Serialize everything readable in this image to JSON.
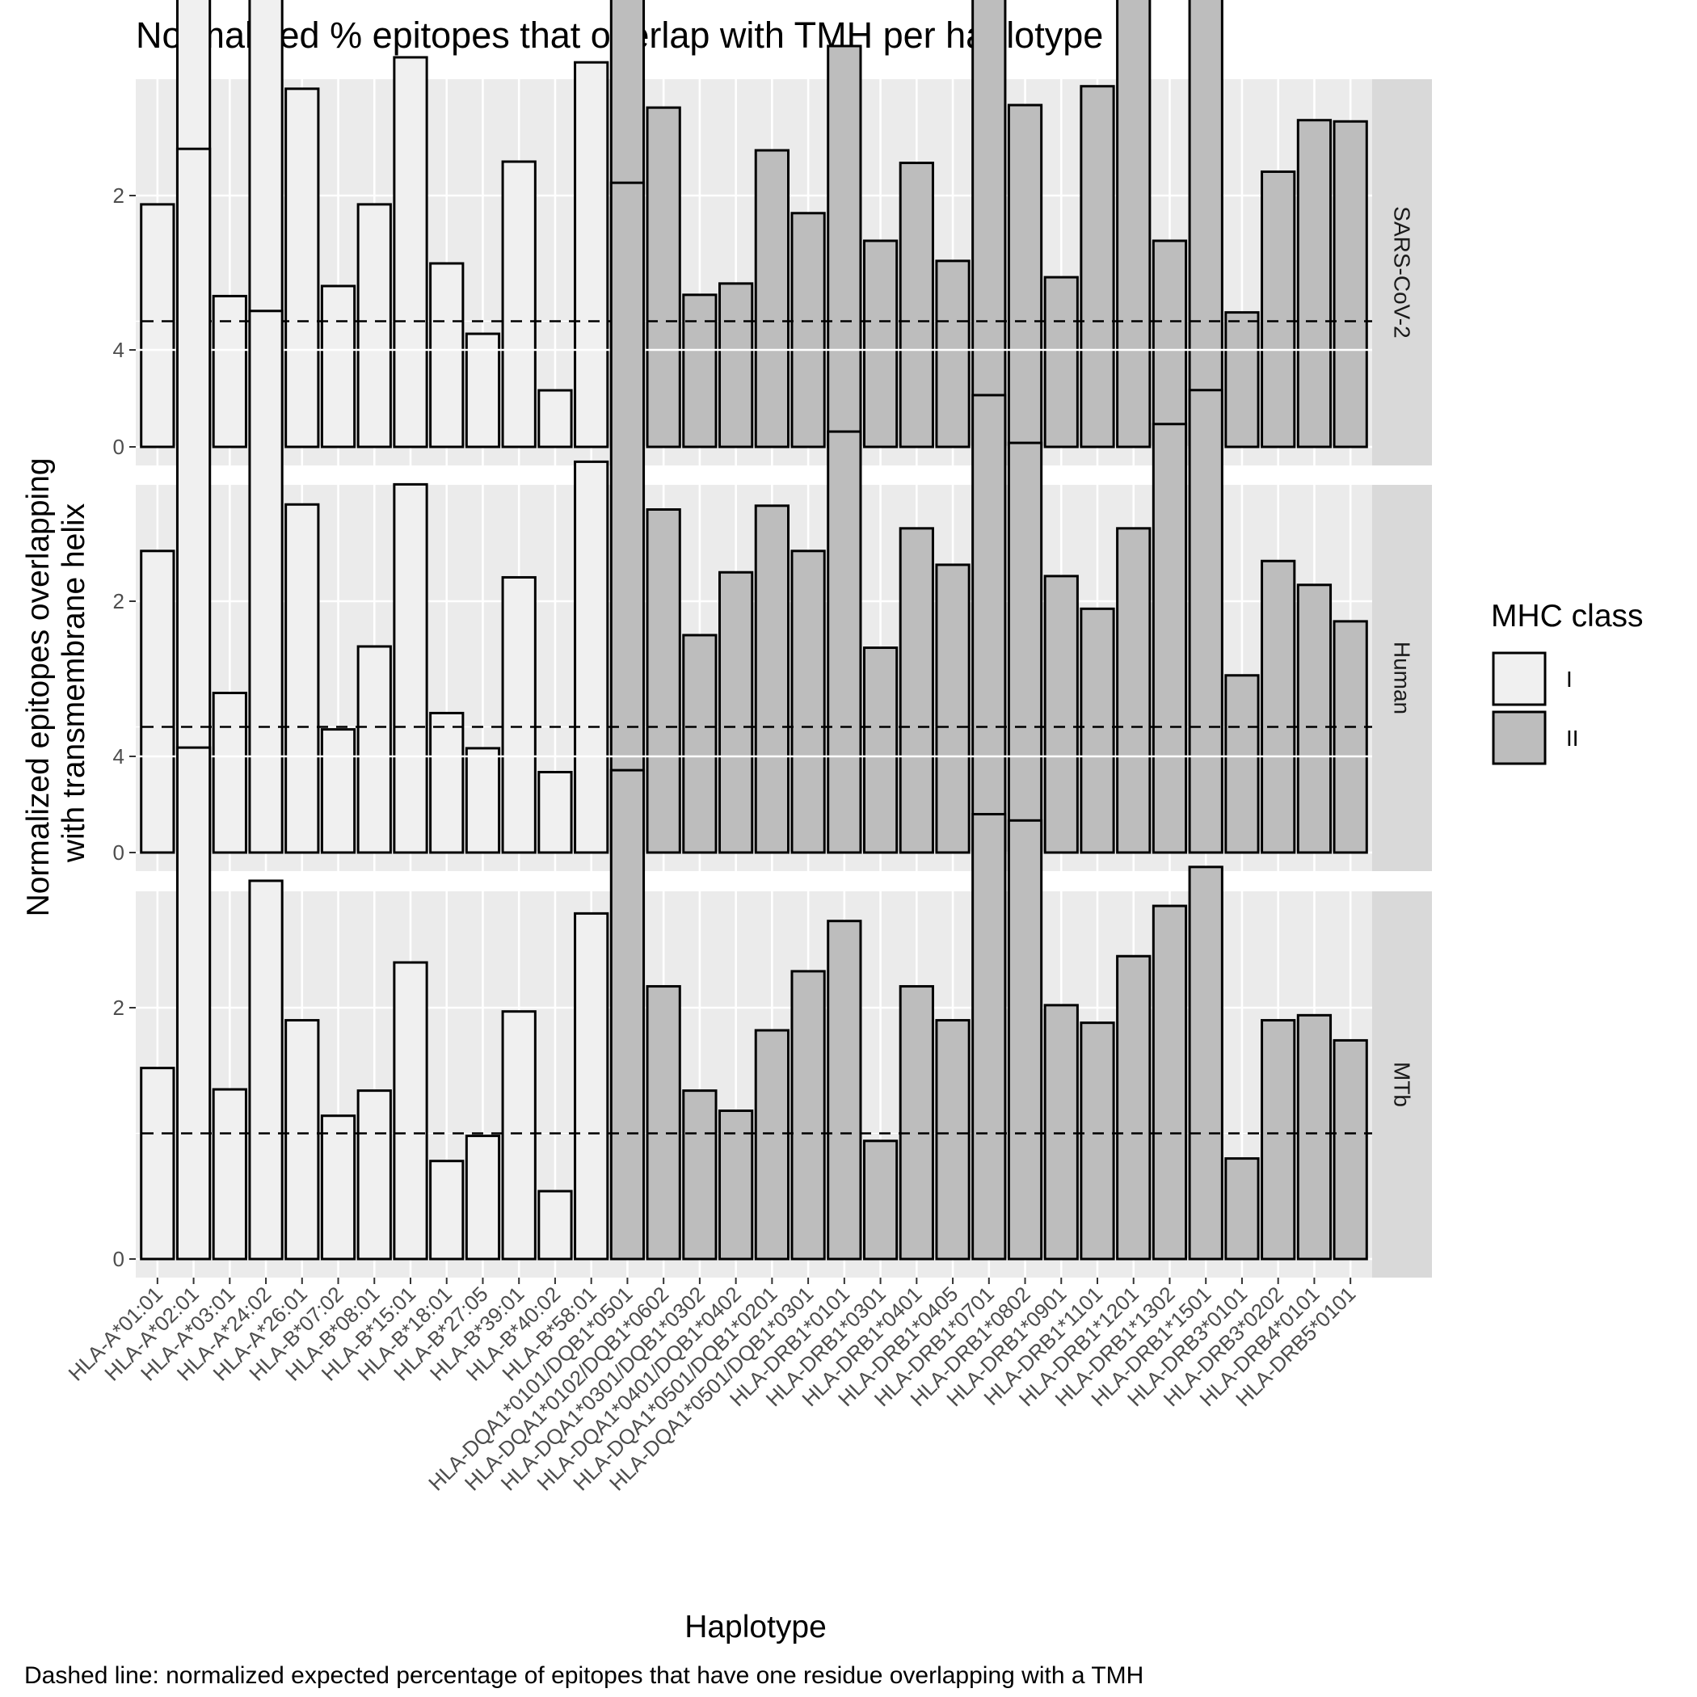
{
  "chart_data": {
    "type": "bar",
    "title": "Normalized % epitopes that overlap with TMH per haplotype",
    "xlabel": "Haplotype",
    "ylabel": [
      "Normalized epitopes overlapping",
      "with transmembrane helix"
    ],
    "caption": "Dashed line: normalized expected percentage of epitopes that have one residue overlapping with a TMH",
    "ylim": [
      0,
      5.9
    ],
    "yticks": [
      0,
      2,
      4
    ],
    "reference_line": 1,
    "grid": true,
    "legend": {
      "title": "MHC class",
      "position": "right",
      "items": [
        {
          "label": "I",
          "color": "#f0f0f0"
        },
        {
          "label": "II",
          "color": "#bdbdbd"
        }
      ]
    },
    "categories": [
      "HLA-A*01:01",
      "HLA-A*02:01",
      "HLA-A*03:01",
      "HLA-A*24:02",
      "HLA-A*26:01",
      "HLA-B*07:02",
      "HLA-B*08:01",
      "HLA-B*15:01",
      "HLA-B*18:01",
      "HLA-B*27:05",
      "HLA-B*39:01",
      "HLA-B*40:02",
      "HLA-B*58:01",
      "HLA-DQA1*0101/DQB1*0501",
      "HLA-DQA1*0102/DQB1*0602",
      "HLA-DQA1*0301/DQB1*0302",
      "HLA-DQA1*0401/DQB1*0402",
      "HLA-DQA1*0501/DQB1*0201",
      "HLA-DQA1*0501/DQB1*0301",
      "HLA-DRB1*0101",
      "HLA-DRB1*0301",
      "HLA-DRB1*0401",
      "HLA-DRB1*0405",
      "HLA-DRB1*0701",
      "HLA-DRB1*0802",
      "HLA-DRB1*0901",
      "HLA-DRB1*1101",
      "HLA-DRB1*1201",
      "HLA-DRB1*1302",
      "HLA-DRB1*1501",
      "HLA-DRB3*0101",
      "HLA-DRB3*0202",
      "HLA-DRB4*0101",
      "HLA-DRB5*0101"
    ],
    "mhc_class": [
      "I",
      "I",
      "I",
      "I",
      "I",
      "I",
      "I",
      "I",
      "I",
      "I",
      "I",
      "I",
      "I",
      "II",
      "II",
      "II",
      "II",
      "II",
      "II",
      "II",
      "II",
      "II",
      "II",
      "II",
      "II",
      "II",
      "II",
      "II",
      "II",
      "II",
      "II",
      "II",
      "II",
      "II"
    ],
    "panels": [
      {
        "name": "SARS-CoV-2",
        "values": [
          1.93,
          4.56,
          1.2,
          5.05,
          2.85,
          1.28,
          1.93,
          3.1,
          1.46,
          0.9,
          2.27,
          0.45,
          3.06,
          4.68,
          2.7,
          1.21,
          1.3,
          2.36,
          1.86,
          3.19,
          1.64,
          2.26,
          1.48,
          3.79,
          2.72,
          1.35,
          2.87,
          4.35,
          1.64,
          4.15,
          1.07,
          2.19,
          2.6,
          2.59
        ]
      },
      {
        "name": "Human",
        "values": [
          2.4,
          5.6,
          1.27,
          4.31,
          2.77,
          0.98,
          1.64,
          2.93,
          1.11,
          0.83,
          2.19,
          0.64,
          3.11,
          5.33,
          2.73,
          1.73,
          2.23,
          2.76,
          2.4,
          3.35,
          1.63,
          2.58,
          2.29,
          3.64,
          3.26,
          2.2,
          1.94,
          2.58,
          3.41,
          3.68,
          1.41,
          2.32,
          2.13,
          1.84
        ]
      },
      {
        "name": "MTb",
        "values": [
          1.52,
          4.07,
          1.35,
          3.01,
          1.9,
          1.14,
          1.34,
          2.36,
          0.78,
          0.98,
          1.97,
          0.54,
          2.75,
          3.89,
          2.17,
          1.34,
          1.18,
          1.82,
          2.29,
          2.69,
          0.94,
          2.17,
          1.9,
          3.54,
          3.49,
          2.02,
          1.88,
          2.41,
          2.81,
          3.12,
          0.8,
          1.9,
          1.94,
          1.74
        ]
      }
    ]
  }
}
